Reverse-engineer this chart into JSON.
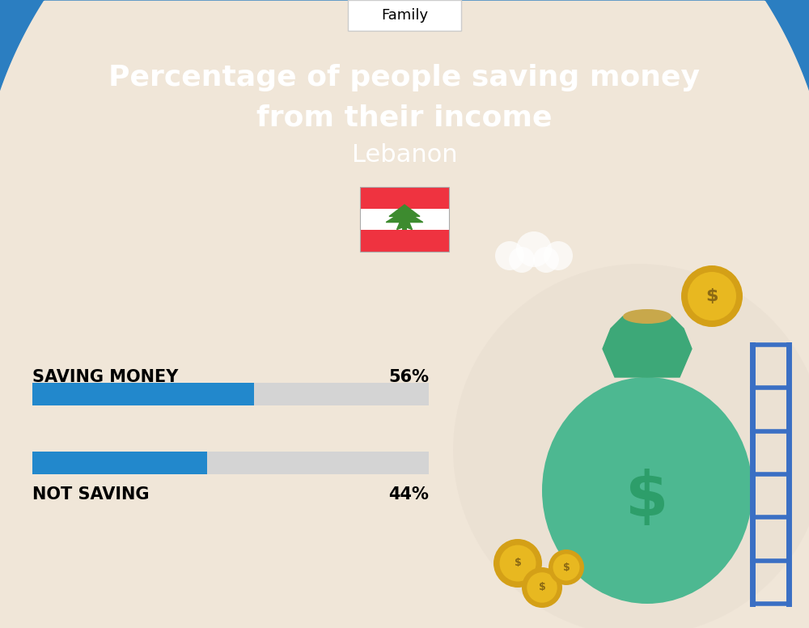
{
  "bg_color": "#f0e6d8",
  "blue_color": "#2b7ec1",
  "bar_blue": "#2288cc",
  "bar_gray": "#d4d4d4",
  "title_line1": "Percentage of people saving money",
  "title_line2": "from their income",
  "subtitle": "Lebanon",
  "tab_label": "Family",
  "saving_label": "SAVING MONEY",
  "saving_pct": "56%",
  "saving_value": 56,
  "not_saving_label": "NOT SAVING",
  "not_saving_pct": "44%",
  "not_saving_value": 44,
  "white": "#ffffff",
  "black": "#000000",
  "fig_w": 10.0,
  "fig_h": 7.76
}
